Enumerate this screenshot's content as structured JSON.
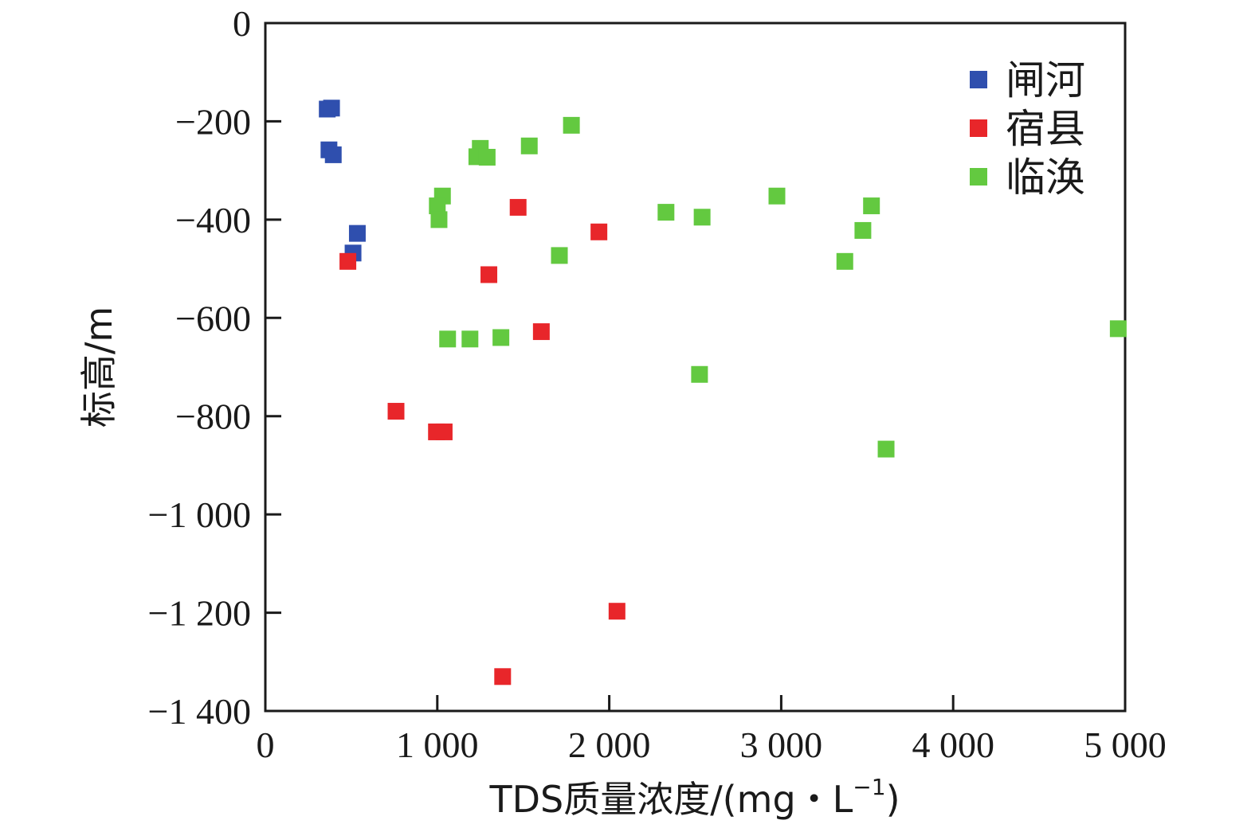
{
  "chart_data": {
    "type": "scatter",
    "title": "",
    "xlabel_main": "TDS质量浓度/(mg・L",
    "xlabel_sup": "−1",
    "xlabel_end": ")",
    "ylabel": "标高/m",
    "xlim": [
      0,
      5000
    ],
    "ylim": [
      -1400,
      0
    ],
    "x_ticks": [
      0,
      1000,
      2000,
      3000,
      4000,
      5000
    ],
    "x_tick_labels": [
      "0",
      "1 000",
      "2 000",
      "3 000",
      "4 000",
      "5 000"
    ],
    "y_ticks": [
      0,
      -200,
      -400,
      -600,
      -800,
      -1000,
      -1200,
      -1400
    ],
    "y_tick_labels": [
      "0",
      "−200",
      "−400",
      "−600",
      "−800",
      "−1 000",
      "−1 200",
      "−1 400"
    ],
    "grid": false,
    "legend_position": "top-right",
    "series": [
      {
        "name": "闸河",
        "color": "#2f4fae",
        "points": [
          [
            360,
            -175
          ],
          [
            385,
            -173
          ],
          [
            370,
            -258
          ],
          [
            395,
            -268
          ],
          [
            535,
            -428
          ],
          [
            510,
            -468
          ]
        ]
      },
      {
        "name": "宿县",
        "color": "#e8262a",
        "points": [
          [
            480,
            -485
          ],
          [
            760,
            -790
          ],
          [
            995,
            -832
          ],
          [
            1040,
            -832
          ],
          [
            1300,
            -512
          ],
          [
            1470,
            -375
          ],
          [
            1605,
            -628
          ],
          [
            1940,
            -425
          ],
          [
            2045,
            -1197
          ],
          [
            1380,
            -1330
          ]
        ]
      },
      {
        "name": "临涣",
        "color": "#63c940",
        "points": [
          [
            1250,
            -255
          ],
          [
            1230,
            -272
          ],
          [
            1290,
            -273
          ],
          [
            1535,
            -250
          ],
          [
            1780,
            -208
          ],
          [
            1030,
            -352
          ],
          [
            1000,
            -372
          ],
          [
            1010,
            -400
          ],
          [
            1710,
            -473
          ],
          [
            1060,
            -643
          ],
          [
            1190,
            -643
          ],
          [
            1370,
            -640
          ],
          [
            2330,
            -385
          ],
          [
            2540,
            -395
          ],
          [
            2975,
            -352
          ],
          [
            3370,
            -485
          ],
          [
            3475,
            -422
          ],
          [
            3525,
            -372
          ],
          [
            2525,
            -715
          ],
          [
            3610,
            -867
          ],
          [
            4960,
            -622
          ]
        ]
      }
    ]
  }
}
